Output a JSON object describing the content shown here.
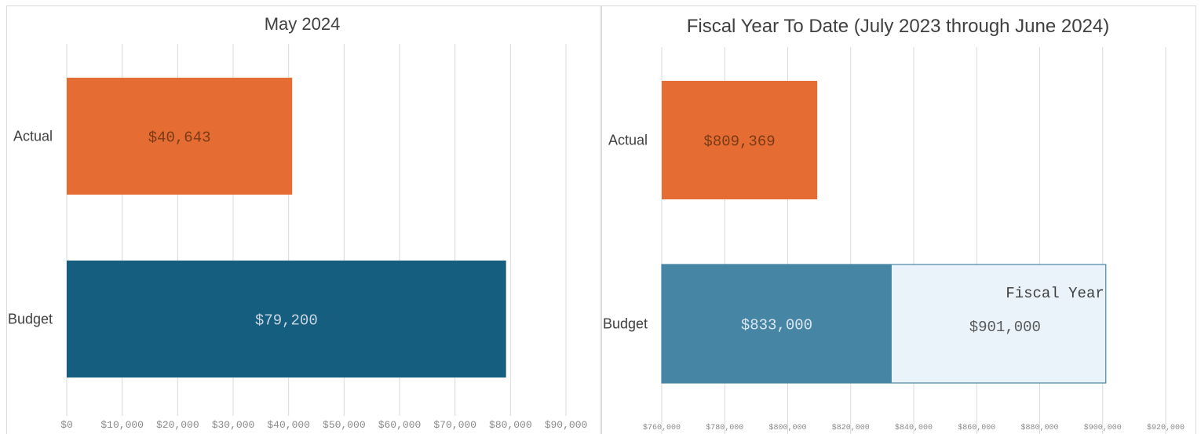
{
  "chart_data": [
    {
      "type": "bar",
      "orientation": "horizontal",
      "title": "May 2024",
      "categories": [
        "Actual",
        "Budget"
      ],
      "values": [
        40643,
        79200
      ],
      "value_labels": [
        "$40,643",
        "$79,200"
      ],
      "colors": [
        "#e56d33",
        "#165e7f"
      ],
      "label_colors": [
        "#7a3a16",
        "#c9d6e0"
      ],
      "xlim": [
        0,
        90000
      ],
      "xticks": [
        0,
        10000,
        20000,
        30000,
        40000,
        50000,
        60000,
        70000,
        80000,
        90000
      ],
      "xtick_labels": [
        "$0",
        "$10,000",
        "$20,000",
        "$30,000",
        "$40,000",
        "$50,000",
        "$60,000",
        "$70,000",
        "$80,000",
        "$90,000"
      ],
      "grid": true
    },
    {
      "type": "bar",
      "orientation": "horizontal",
      "title": "Fiscal Year To Date (July 2023 through June 2024)",
      "categories": [
        "Actual",
        "Budget"
      ],
      "values": [
        809369,
        833000
      ],
      "value_labels": [
        "$809,369",
        "$833,000"
      ],
      "colors": [
        "#e56d33",
        "#4785a5"
      ],
      "label_colors": [
        "#7a3a16",
        "#dce7ef"
      ],
      "overlay": {
        "category": "Budget",
        "value": 901000,
        "label": "Fiscal Year",
        "value_label": "$901,000",
        "fill": "#e9f3f9",
        "stroke": "#4785a5"
      },
      "xlim": [
        760000,
        920000
      ],
      "xticks": [
        760000,
        780000,
        800000,
        820000,
        840000,
        860000,
        880000,
        900000,
        920000
      ],
      "xtick_labels": [
        "$760,000",
        "$780,000",
        "$800,000",
        "$820,000",
        "$840,000",
        "$860,000",
        "$880,000",
        "$900,000",
        "$920,000"
      ],
      "grid": true
    }
  ]
}
